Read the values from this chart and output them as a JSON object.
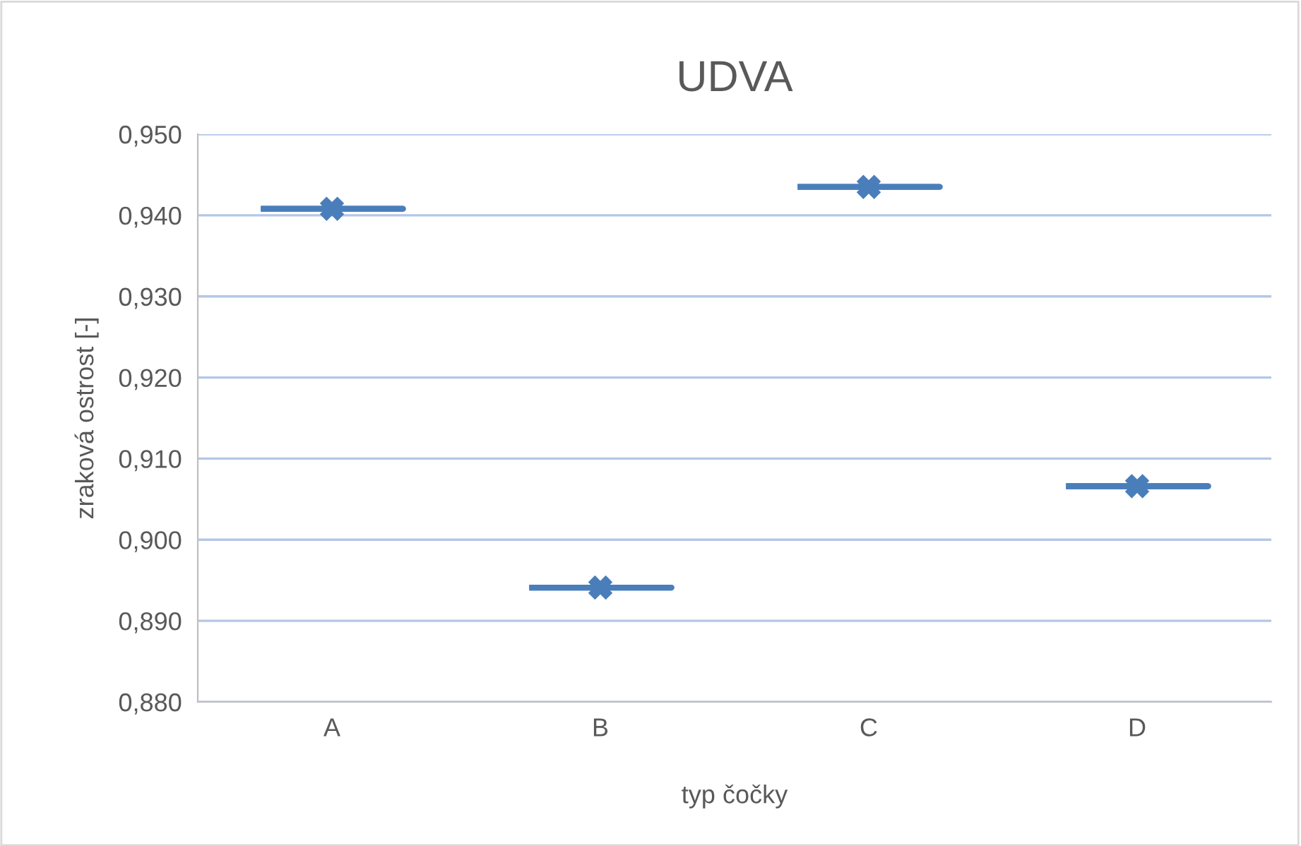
{
  "chart_data": {
    "type": "box",
    "title": "UDVA",
    "xlabel": "typ čočky",
    "ylabel": "zraková ostrost [-]",
    "categories": [
      "A",
      "B",
      "C",
      "D"
    ],
    "boxes": [
      {
        "low": 0.9408,
        "q1": 0.9408,
        "median": 0.9408,
        "q3": 0.9408,
        "high": 0.9408,
        "mean": 0.9408
      },
      {
        "low": 0.8941,
        "q1": 0.8941,
        "median": 0.8941,
        "q3": 0.8941,
        "high": 0.8941,
        "mean": 0.8941
      },
      {
        "low": 0.9435,
        "q1": 0.9435,
        "median": 0.9435,
        "q3": 0.9435,
        "high": 0.9435,
        "mean": 0.9435
      },
      {
        "low": 0.9066,
        "q1": 0.9066,
        "median": 0.9066,
        "q3": 0.9066,
        "high": 0.9066,
        "mean": 0.9066
      }
    ],
    "color": "#4a7ebb",
    "marker": "cross",
    "ylim": [
      0.88,
      0.95
    ],
    "yticks": [
      {
        "value": 0.88,
        "label": "0,880"
      },
      {
        "value": 0.89,
        "label": "0,890"
      },
      {
        "value": 0.9,
        "label": "0,900"
      },
      {
        "value": 0.91,
        "label": "0,910"
      },
      {
        "value": 0.92,
        "label": "0,920"
      },
      {
        "value": 0.93,
        "label": "0,930"
      },
      {
        "value": 0.94,
        "label": "0,940"
      },
      {
        "value": 0.95,
        "label": "0,950"
      }
    ],
    "grid": "y"
  }
}
